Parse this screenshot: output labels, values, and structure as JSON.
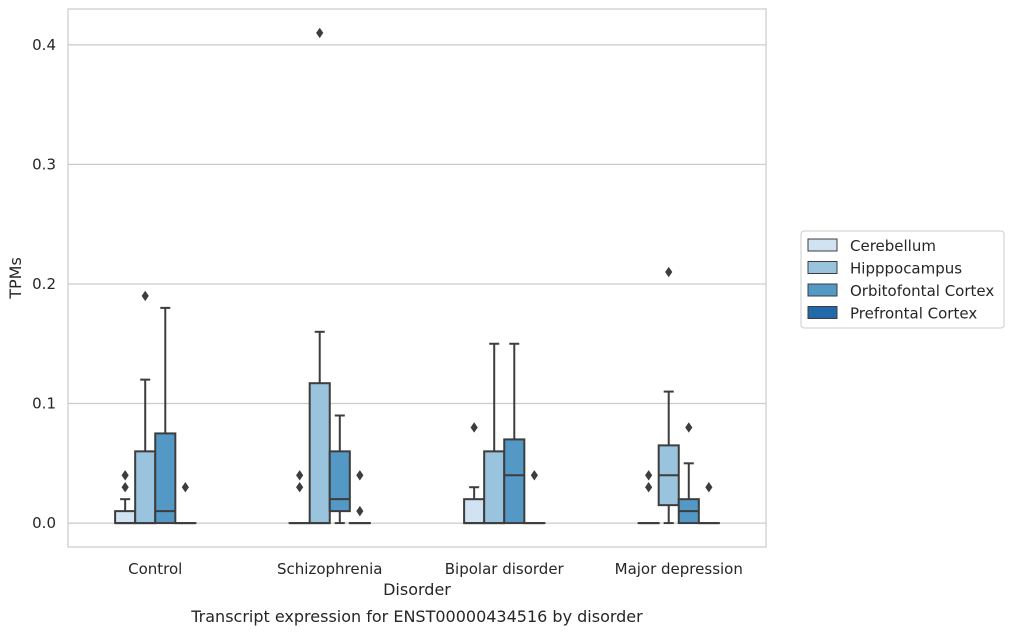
{
  "chart_data": {
    "type": "box",
    "xlabel": "Disorder",
    "ylabel": "TPMs",
    "caption": "Transcript expression for ENST00000434516 by disorder",
    "ylim": [
      -0.02,
      0.43
    ],
    "yticks": [
      0.0,
      0.1,
      0.2,
      0.3,
      0.4
    ],
    "ytick_labels": [
      "0.0",
      "0.1",
      "0.2",
      "0.3",
      "0.4"
    ],
    "grid": "horizontal",
    "legend_position": "right",
    "categories": [
      "Control",
      "Schizophrenia",
      "Bipolar disorder",
      "Major depression"
    ],
    "series": [
      {
        "name": "Cerebellum",
        "color": "#d1e2f2",
        "boxes": [
          {
            "whislo": 0.0,
            "q1": 0.0,
            "med": 0.0,
            "q3": 0.01,
            "whishi": 0.02,
            "fliers": [
              0.03,
              0.04
            ]
          },
          {
            "whislo": 0.0,
            "q1": 0.0,
            "med": 0.0,
            "q3": 0.0,
            "whishi": 0.0,
            "fliers": [
              0.03,
              0.04
            ]
          },
          {
            "whislo": 0.0,
            "q1": 0.0,
            "med": 0.0,
            "q3": 0.02,
            "whishi": 0.03,
            "fliers": [
              0.08
            ]
          },
          {
            "whislo": 0.0,
            "q1": 0.0,
            "med": 0.0,
            "q3": 0.0,
            "whishi": 0.0,
            "fliers": [
              0.03,
              0.04
            ]
          }
        ]
      },
      {
        "name": "Hipppocampus",
        "color": "#9ac4de",
        "boxes": [
          {
            "whislo": 0.0,
            "q1": 0.0,
            "med": 0.0,
            "q3": 0.06,
            "whishi": 0.12,
            "fliers": [
              0.19
            ]
          },
          {
            "whislo": 0.0,
            "q1": 0.0,
            "med": 0.0,
            "q3": 0.117,
            "whishi": 0.16,
            "fliers": [
              0.41
            ]
          },
          {
            "whislo": 0.0,
            "q1": 0.0,
            "med": 0.0,
            "q3": 0.06,
            "whishi": 0.15,
            "fliers": []
          },
          {
            "whislo": 0.0,
            "q1": 0.015,
            "med": 0.04,
            "q3": 0.065,
            "whishi": 0.11,
            "fliers": [
              0.21
            ]
          }
        ]
      },
      {
        "name": "Orbitofontal Cortex",
        "color": "#5498c6",
        "boxes": [
          {
            "whislo": 0.0,
            "q1": 0.0,
            "med": 0.01,
            "q3": 0.075,
            "whishi": 0.18,
            "fliers": []
          },
          {
            "whislo": 0.0,
            "q1": 0.01,
            "med": 0.02,
            "q3": 0.06,
            "whishi": 0.09,
            "fliers": []
          },
          {
            "whislo": 0.0,
            "q1": 0.0,
            "med": 0.04,
            "q3": 0.07,
            "whishi": 0.15,
            "fliers": []
          },
          {
            "whislo": 0.0,
            "q1": 0.0,
            "med": 0.01,
            "q3": 0.02,
            "whishi": 0.05,
            "fliers": [
              0.08
            ]
          }
        ]
      },
      {
        "name": "Prefrontal Cortex",
        "color": "#2269a9",
        "boxes": [
          {
            "whislo": 0.0,
            "q1": 0.0,
            "med": 0.0,
            "q3": 0.0,
            "whishi": 0.0,
            "fliers": [
              0.03
            ]
          },
          {
            "whislo": 0.0,
            "q1": 0.0,
            "med": 0.0,
            "q3": 0.0,
            "whishi": 0.0,
            "fliers": [
              0.01,
              0.04
            ]
          },
          {
            "whislo": 0.0,
            "q1": 0.0,
            "med": 0.0,
            "q3": 0.0,
            "whishi": 0.0,
            "fliers": [
              0.04
            ]
          },
          {
            "whislo": 0.0,
            "q1": 0.0,
            "med": 0.0,
            "q3": 0.0,
            "whishi": 0.0,
            "fliers": [
              0.03
            ]
          }
        ]
      }
    ]
  }
}
